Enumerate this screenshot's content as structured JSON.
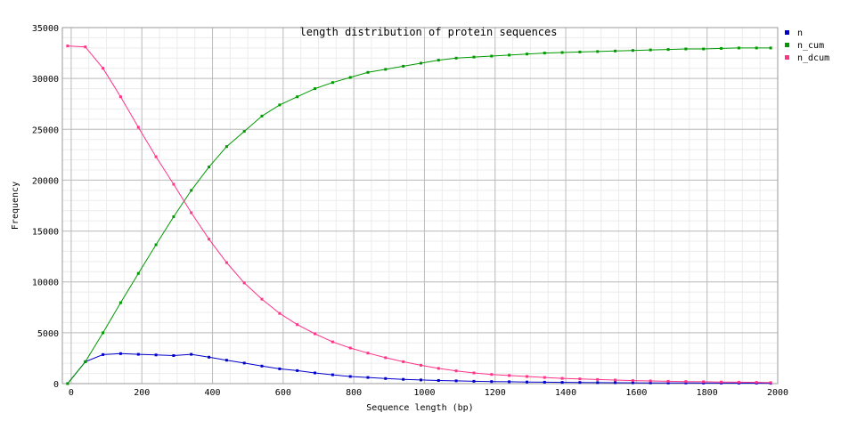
{
  "chart_data": {
    "type": "line",
    "title": "length distribution of protein sequences",
    "xlabel": "Sequence length (bp)",
    "ylabel": "Frequency",
    "xlim": [
      -25,
      2000
    ],
    "ylim": [
      0,
      35000
    ],
    "x_ticks": [
      0,
      200,
      400,
      600,
      800,
      1000,
      1200,
      1400,
      1600,
      1800,
      2000
    ],
    "y_ticks": [
      0,
      5000,
      10000,
      15000,
      20000,
      25000,
      30000,
      35000
    ],
    "grid": true,
    "legend_position": "right",
    "x": [
      -10,
      40,
      90,
      140,
      190,
      240,
      290,
      340,
      390,
      440,
      490,
      540,
      590,
      640,
      690,
      740,
      790,
      840,
      890,
      940,
      990,
      1040,
      1090,
      1140,
      1190,
      1240,
      1290,
      1340,
      1390,
      1440,
      1490,
      1540,
      1590,
      1640,
      1690,
      1740,
      1790,
      1840,
      1890,
      1940,
      1980
    ],
    "series": [
      {
        "name": "n",
        "color": "#0000cc",
        "values": [
          0,
          2150,
          2850,
          2950,
          2880,
          2820,
          2760,
          2880,
          2600,
          2300,
          2020,
          1720,
          1450,
          1280,
          1050,
          870,
          700,
          600,
          500,
          420,
          360,
          310,
          270,
          230,
          200,
          180,
          160,
          140,
          120,
          110,
          100,
          90,
          80,
          70,
          65,
          60,
          55,
          50,
          45,
          40,
          35
        ]
      },
      {
        "name": "n_cum",
        "color": "#009900",
        "values": [
          0,
          2150,
          5000,
          7950,
          10830,
          13650,
          16410,
          19000,
          21300,
          23300,
          24800,
          26300,
          27400,
          28200,
          29000,
          29600,
          30100,
          30600,
          30900,
          31200,
          31500,
          31800,
          32000,
          32100,
          32200,
          32300,
          32400,
          32500,
          32550,
          32600,
          32650,
          32700,
          32750,
          32800,
          32850,
          32900,
          32900,
          32950,
          33000,
          33000,
          33000
        ]
      },
      {
        "name": "n_dcum",
        "color": "#ff3388",
        "values": [
          33200,
          33100,
          31000,
          28200,
          25200,
          22300,
          19600,
          16800,
          14200,
          11900,
          9900,
          8300,
          6900,
          5800,
          4900,
          4100,
          3500,
          3000,
          2550,
          2150,
          1800,
          1500,
          1250,
          1050,
          900,
          800,
          700,
          600,
          520,
          460,
          400,
          350,
          300,
          260,
          230,
          200,
          180,
          160,
          140,
          120,
          100
        ]
      }
    ]
  }
}
